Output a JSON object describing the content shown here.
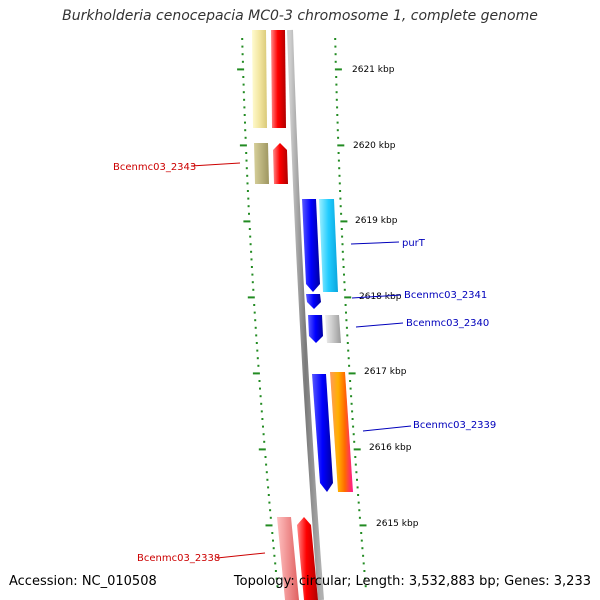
{
  "title": "Burkholderia cenocepacia MC0-3 chromosome 1, complete genome",
  "accession": "Accession: NC_010508",
  "summary": "Topology: circular; Length: 3,532,883 bp; Genes: 3,233",
  "colors": {
    "backbone": "#888888",
    "ticks": "#228B22",
    "forward_label": "#cc0000",
    "reverse_label": "#0000bb"
  },
  "scale_labels": [
    "2621 kbp",
    "2620 kbp",
    "2619 kbp",
    "2618 kbp",
    "2617 kbp",
    "2616 kbp",
    "2615 kbp"
  ],
  "gene_labels": [
    {
      "text": "Bcenmc03_2343",
      "strand": "red"
    },
    {
      "text": "purT",
      "strand": "blue"
    },
    {
      "text": "Bcenmc03_2341",
      "strand": "blue"
    },
    {
      "text": "Bcenmc03_2340",
      "strand": "blue"
    },
    {
      "text": "Bcenmc03_2339",
      "strand": "blue"
    },
    {
      "text": "Bcenmc03_2338",
      "strand": "red"
    }
  ]
}
